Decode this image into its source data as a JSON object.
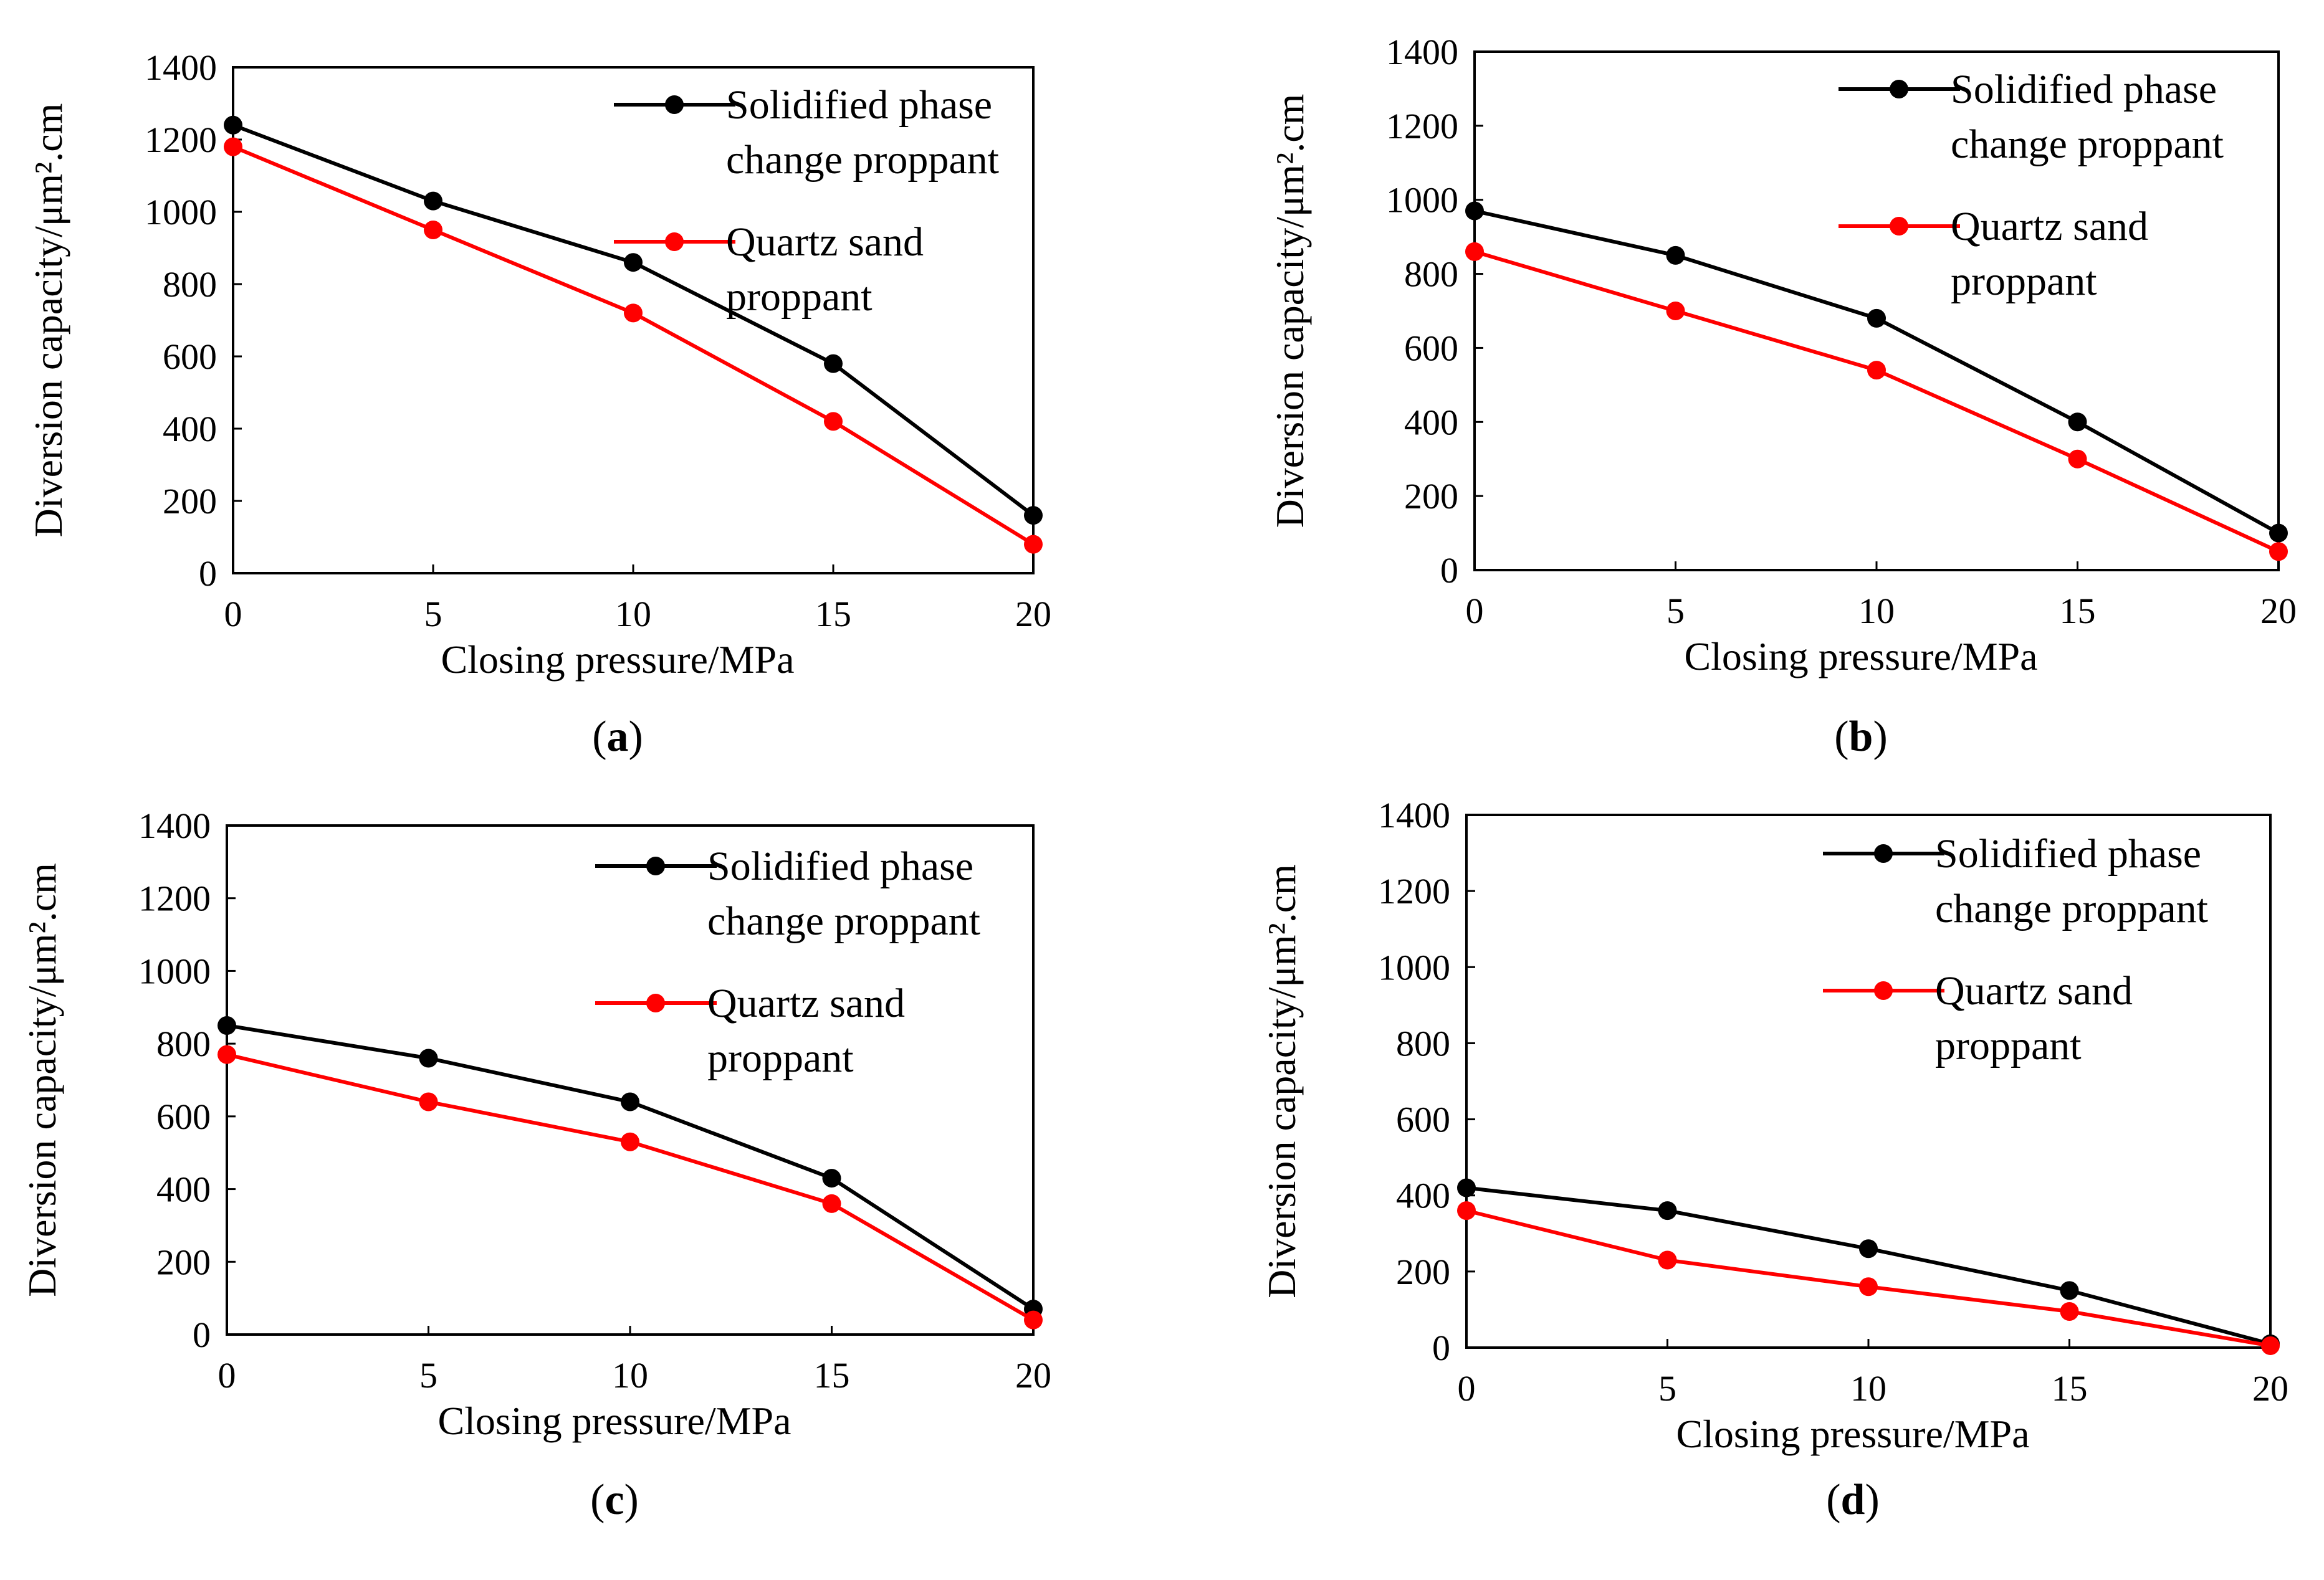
{
  "chart_data": [
    {
      "type": "line",
      "panel_label": "a",
      "title": "",
      "xlabel": "Closing pressure/MPa",
      "ylabel": "Diversion capacity/μm².cm",
      "x": [
        0,
        5,
        10,
        15,
        20
      ],
      "xlim": [
        0,
        20
      ],
      "ylim": [
        0,
        1400
      ],
      "xticks": [
        "0",
        "5",
        "10",
        "15",
        "20"
      ],
      "yticks": [
        "0",
        "200",
        "400",
        "600",
        "800",
        "1000",
        "1200",
        "1400"
      ],
      "grid": false,
      "legend_position": "top-right",
      "series": [
        {
          "name": "Solidified phase change proppant",
          "legend_lines": [
            "Solidified phase",
            "change proppant"
          ],
          "color": "#000000",
          "values": [
            1240,
            1030,
            860,
            580,
            160
          ]
        },
        {
          "name": "Quartz sand proppant",
          "legend_lines": [
            "Quartz sand",
            "proppant"
          ],
          "color": "#ff0000",
          "values": [
            1180,
            950,
            720,
            420,
            80
          ]
        }
      ]
    },
    {
      "type": "line",
      "panel_label": "b",
      "title": "",
      "xlabel": "Closing pressure/MPa",
      "ylabel": "Diversion capacity/μm².cm",
      "x": [
        0,
        5,
        10,
        15,
        20
      ],
      "xlim": [
        0,
        20
      ],
      "ylim": [
        0,
        1400
      ],
      "xticks": [
        "0",
        "5",
        "10",
        "15",
        "20"
      ],
      "yticks": [
        "0",
        "200",
        "400",
        "600",
        "800",
        "1000",
        "1200",
        "1400"
      ],
      "grid": false,
      "legend_position": "top-right",
      "series": [
        {
          "name": "Solidified phase change proppant",
          "legend_lines": [
            "Solidified phase",
            "change proppant"
          ],
          "color": "#000000",
          "values": [
            970,
            850,
            680,
            400,
            100
          ]
        },
        {
          "name": "Quartz sand proppant",
          "legend_lines": [
            "Quartz sand",
            "proppant"
          ],
          "color": "#ff0000",
          "values": [
            860,
            700,
            540,
            300,
            50
          ]
        }
      ]
    },
    {
      "type": "line",
      "panel_label": "c",
      "title": "",
      "xlabel": "Closing pressure/MPa",
      "ylabel": "Diversion capacity/μm².cm",
      "x": [
        0,
        5,
        10,
        15,
        20
      ],
      "xlim": [
        0,
        20
      ],
      "ylim": [
        0,
        1400
      ],
      "xticks": [
        "0",
        "5",
        "10",
        "15",
        "20"
      ],
      "yticks": [
        "0",
        "200",
        "400",
        "600",
        "800",
        "1000",
        "1200",
        "1400"
      ],
      "grid": false,
      "legend_position": "top-right",
      "series": [
        {
          "name": "Solidified phase change proppant",
          "legend_lines": [
            "Solidified phase",
            "change proppant"
          ],
          "color": "#000000",
          "values": [
            850,
            760,
            640,
            430,
            70
          ]
        },
        {
          "name": "Quartz sand proppant",
          "legend_lines": [
            "Quartz sand",
            "proppant"
          ],
          "color": "#ff0000",
          "values": [
            770,
            640,
            530,
            360,
            40
          ]
        }
      ]
    },
    {
      "type": "line",
      "panel_label": "d",
      "title": "",
      "xlabel": "Closing pressure/MPa",
      "ylabel": "Diversion capacity/μm².cm",
      "x": [
        0,
        5,
        10,
        15,
        20
      ],
      "xlim": [
        0,
        20
      ],
      "ylim": [
        0,
        1400
      ],
      "xticks": [
        "0",
        "5",
        "10",
        "15",
        "20"
      ],
      "yticks": [
        "0",
        "200",
        "400",
        "600",
        "800",
        "1000",
        "1200",
        "1400"
      ],
      "grid": false,
      "legend_position": "top-right",
      "series": [
        {
          "name": "Solidified phase change proppant",
          "legend_lines": [
            "Solidified phase",
            "change proppant"
          ],
          "color": "#000000",
          "values": [
            420,
            360,
            260,
            150,
            10
          ]
        },
        {
          "name": "Quartz sand proppant",
          "legend_lines": [
            "Quartz sand",
            "proppant"
          ],
          "color": "#ff0000",
          "values": [
            360,
            230,
            160,
            95,
            5
          ]
        }
      ]
    }
  ]
}
